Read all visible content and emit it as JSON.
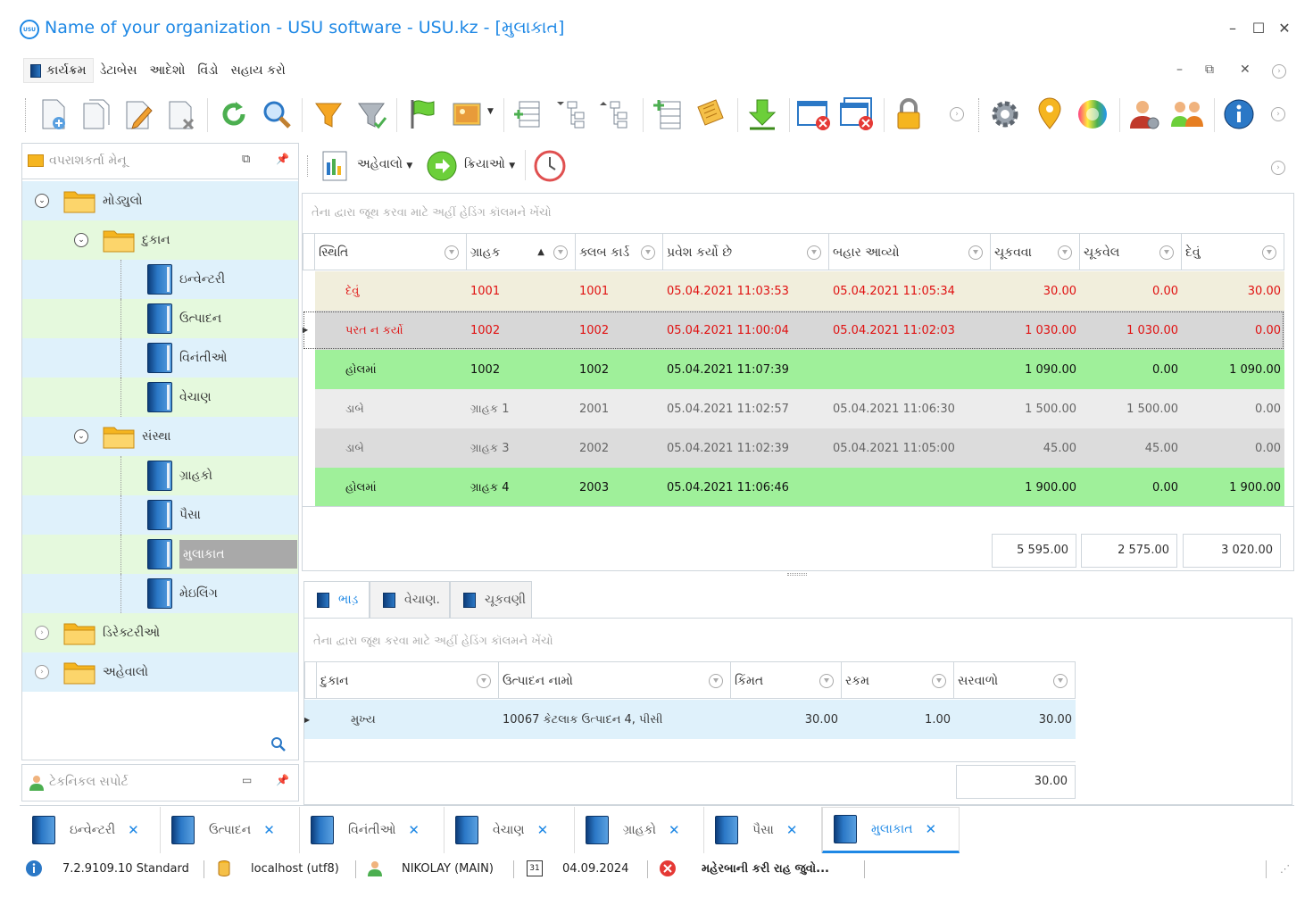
{
  "window": {
    "logo_text": "USU",
    "title": "Name of your organization - USU software - USU.kz - [મુલાકાત]",
    "minimize": "–",
    "maximize": "☐",
    "close": "✕"
  },
  "menu": {
    "items": [
      "કાર્યક્રમ",
      "ડેટાબેસ",
      "આદેશો",
      "વિંડો",
      "સહાય કરો"
    ],
    "right_controls": [
      "–",
      "⧉",
      "✕"
    ]
  },
  "left_panel": {
    "title": "વપરાશકર્તા મેનૂ",
    "tree": [
      {
        "label": "મોડ્યુલો",
        "level": 0,
        "type": "folder",
        "expanded": true
      },
      {
        "label": "દુકાન",
        "level": 1,
        "type": "folder",
        "expanded": true
      },
      {
        "label": "ઇન્વેન્ટરી",
        "level": 2,
        "type": "book"
      },
      {
        "label": "ઉત્પાદન",
        "level": 2,
        "type": "book"
      },
      {
        "label": "વિનંતીઓ",
        "level": 2,
        "type": "book"
      },
      {
        "label": "વેચાણ",
        "level": 2,
        "type": "book"
      },
      {
        "label": "સંસ્થા",
        "level": 1,
        "type": "folder",
        "expanded": true
      },
      {
        "label": "ગ્રાહકો",
        "level": 2,
        "type": "book"
      },
      {
        "label": "પૈસા",
        "level": 2,
        "type": "book"
      },
      {
        "label": "મુલાકાત",
        "level": 2,
        "type": "book",
        "selected": true
      },
      {
        "label": "મેઇલિંગ",
        "level": 2,
        "type": "book"
      },
      {
        "label": "ડિરેક્ટરીઓ",
        "level": 0,
        "type": "folder",
        "expanded": false
      },
      {
        "label": "અહેવાલો",
        "level": 0,
        "type": "folder",
        "expanded": false
      }
    ],
    "bottom_title": "ટેકનિકલ સપોર્ટ"
  },
  "main_toolbar": {
    "reports_label": "અહેવાલો",
    "actions_label": "ક્રિયાઓ"
  },
  "grid1": {
    "group_hint": "તેના દ્વારા જૂથ કરવા માટે અહીં હેડિંગ કૉલમને ખેંચો",
    "columns": [
      "સ્થિતિ",
      "ગ્રાહક",
      "ક્લબ કાર્ડ",
      "પ્રવેશ કર્યો છે",
      "બહાર આવ્યો",
      "ચૂકવવા",
      "ચૂકવેલ",
      "દેવું"
    ],
    "rows": [
      {
        "status": "દેવું",
        "client": "1001",
        "card": "1001",
        "in": "05.04.2021 11:03:53",
        "out": "05.04.2021 11:05:34",
        "topay": "30.00",
        "paid": "0.00",
        "debt": "30.00",
        "style": "red",
        "bg": "#f1eedc"
      },
      {
        "status": "પરત ન કર્યો",
        "client": "1002",
        "card": "1002",
        "in": "05.04.2021 11:00:04",
        "out": "05.04.2021 11:02:03",
        "topay": "1 030.00",
        "paid": "1 030.00",
        "debt": "0.00",
        "style": "red",
        "bg": "#d7d7d7"
      },
      {
        "status": "હોલમાં",
        "client": "1002",
        "card": "1002",
        "in": "05.04.2021 11:07:39",
        "out": "",
        "topay": "1 090.00",
        "paid": "0.00",
        "debt": "1 090.00",
        "style": "black",
        "bg": "#9ff09a"
      },
      {
        "status": "ડાબે",
        "client": "ગ્રાહક 1",
        "card": "2001",
        "in": "05.04.2021 11:02:57",
        "out": "05.04.2021 11:06:30",
        "topay": "1 500.00",
        "paid": "1 500.00",
        "debt": "0.00",
        "style": "gray",
        "bg": "#ececec"
      },
      {
        "status": "ડાબે",
        "client": "ગ્રાહક 3",
        "card": "2002",
        "in": "05.04.2021 11:02:39",
        "out": "05.04.2021 11:05:00",
        "topay": "45.00",
        "paid": "45.00",
        "debt": "0.00",
        "style": "gray",
        "bg": "#dcdcdc"
      },
      {
        "status": "હોલમાં",
        "client": "ગ્રાહક 4",
        "card": "2003",
        "in": "05.04.2021 11:06:46",
        "out": "",
        "topay": "1 900.00",
        "paid": "0.00",
        "debt": "1 900.00",
        "style": "black",
        "bg": "#9ff09a"
      }
    ],
    "totals": [
      "5 595.00",
      "2 575.00",
      "3 020.00"
    ]
  },
  "subtabs": [
    "ભાડ઼",
    "વેચાણ.",
    "ચૂકવણી"
  ],
  "grid2": {
    "group_hint": "તેના દ્વારા જૂથ કરવા માટે અહીં હેડિંગ કૉલમને ખેંચો",
    "columns": [
      "દુકાન",
      "ઉત્પાદન નામો",
      "કિંમત",
      "રકમ",
      "સરવાળો"
    ],
    "rows": [
      {
        "shop": "મુખ્ય",
        "product": "10067 કેટલાક ઉત્પાદન 4, પીસી",
        "price": "30.00",
        "qty": "1.00",
        "sum": "30.00"
      }
    ],
    "total": "30.00"
  },
  "bottom_tabs": [
    {
      "label": "ઇન્વેન્ટરી",
      "active": false
    },
    {
      "label": "ઉત્પાદન",
      "active": false
    },
    {
      "label": "વિનંતીઓ",
      "active": false
    },
    {
      "label": "વેચાણ",
      "active": false
    },
    {
      "label": "ગ્રાહકો",
      "active": false
    },
    {
      "label": "પૈસા",
      "active": false
    },
    {
      "label": "મુલાકાત",
      "active": true
    }
  ],
  "status": {
    "version": "7.2.9109.10 Standard",
    "db": "localhost (utf8)",
    "user": "NIKOLAY (MAIN)",
    "calendar_day": "31",
    "date": "04.09.2024",
    "message": "મહેરબાની કરી રાહ જુવો..."
  },
  "colors": {
    "accent": "#1e88e5",
    "green_row": "#9ff09a",
    "red_text": "#e01010"
  }
}
